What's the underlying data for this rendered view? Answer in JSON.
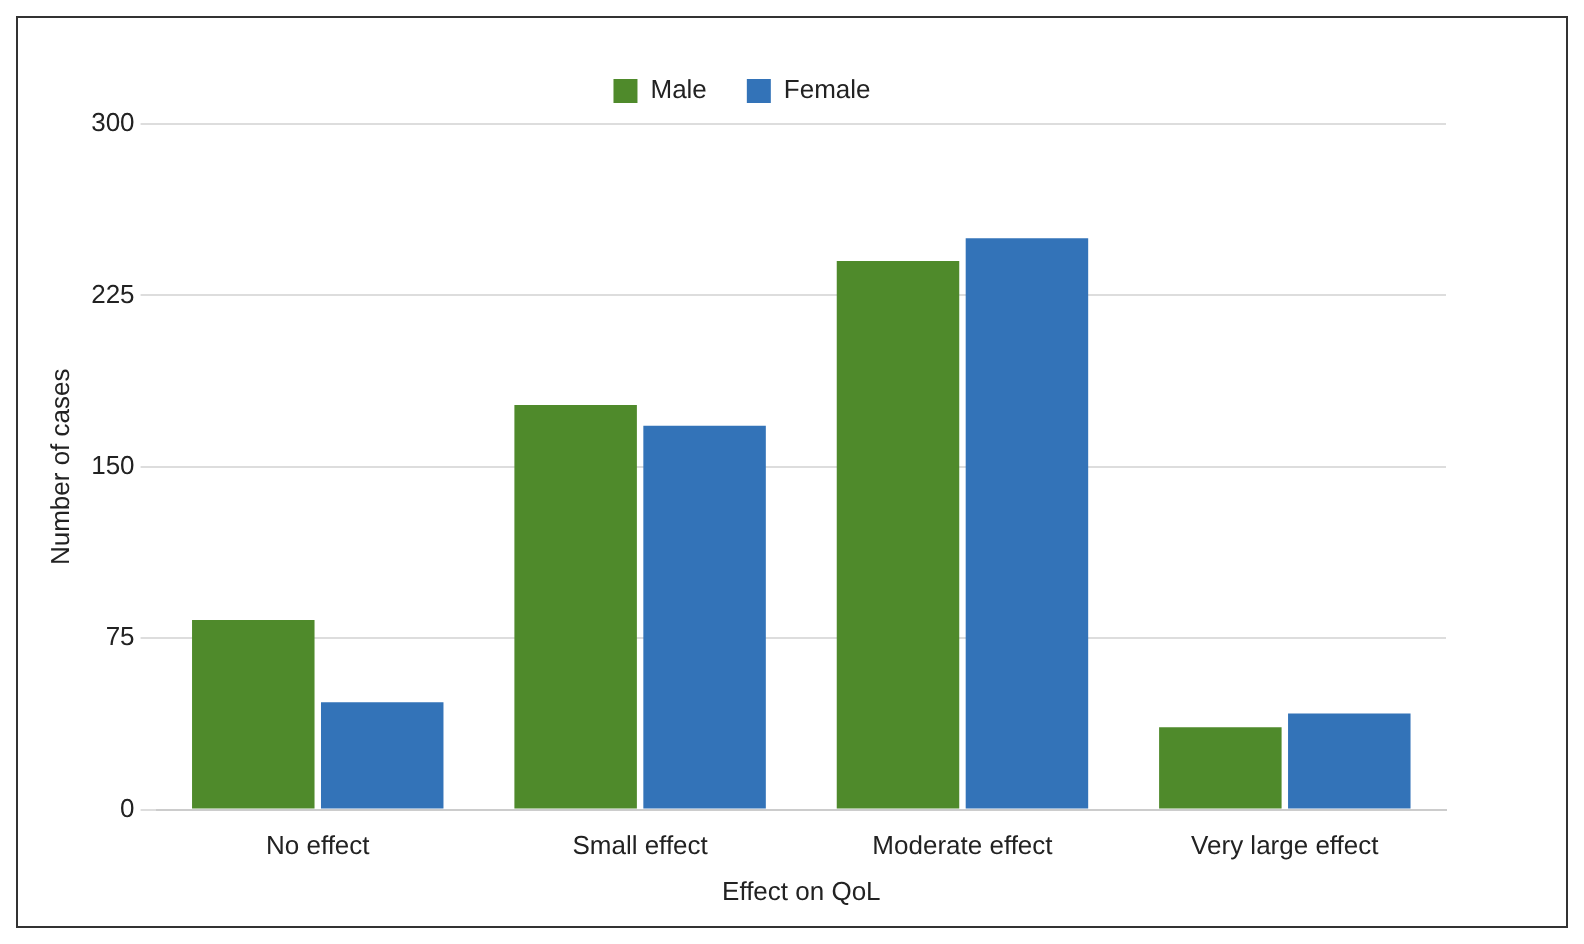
{
  "chart_data": {
    "type": "bar",
    "categories": [
      "No effect",
      "Small effect",
      "Moderate effect",
      "Very large effect"
    ],
    "series": [
      {
        "name": "Male",
        "color": "#4f8a2b",
        "values": [
          83,
          177,
          240,
          36
        ]
      },
      {
        "name": "Female",
        "color": "#3373b8",
        "values": [
          47,
          168,
          250,
          42
        ]
      }
    ],
    "xlabel": "Effect on QoL",
    "ylabel": "Number of cases",
    "ylim": [
      0,
      300
    ],
    "yticks": [
      0,
      75,
      150,
      225,
      300
    ],
    "grid": "y",
    "legend": "top"
  }
}
